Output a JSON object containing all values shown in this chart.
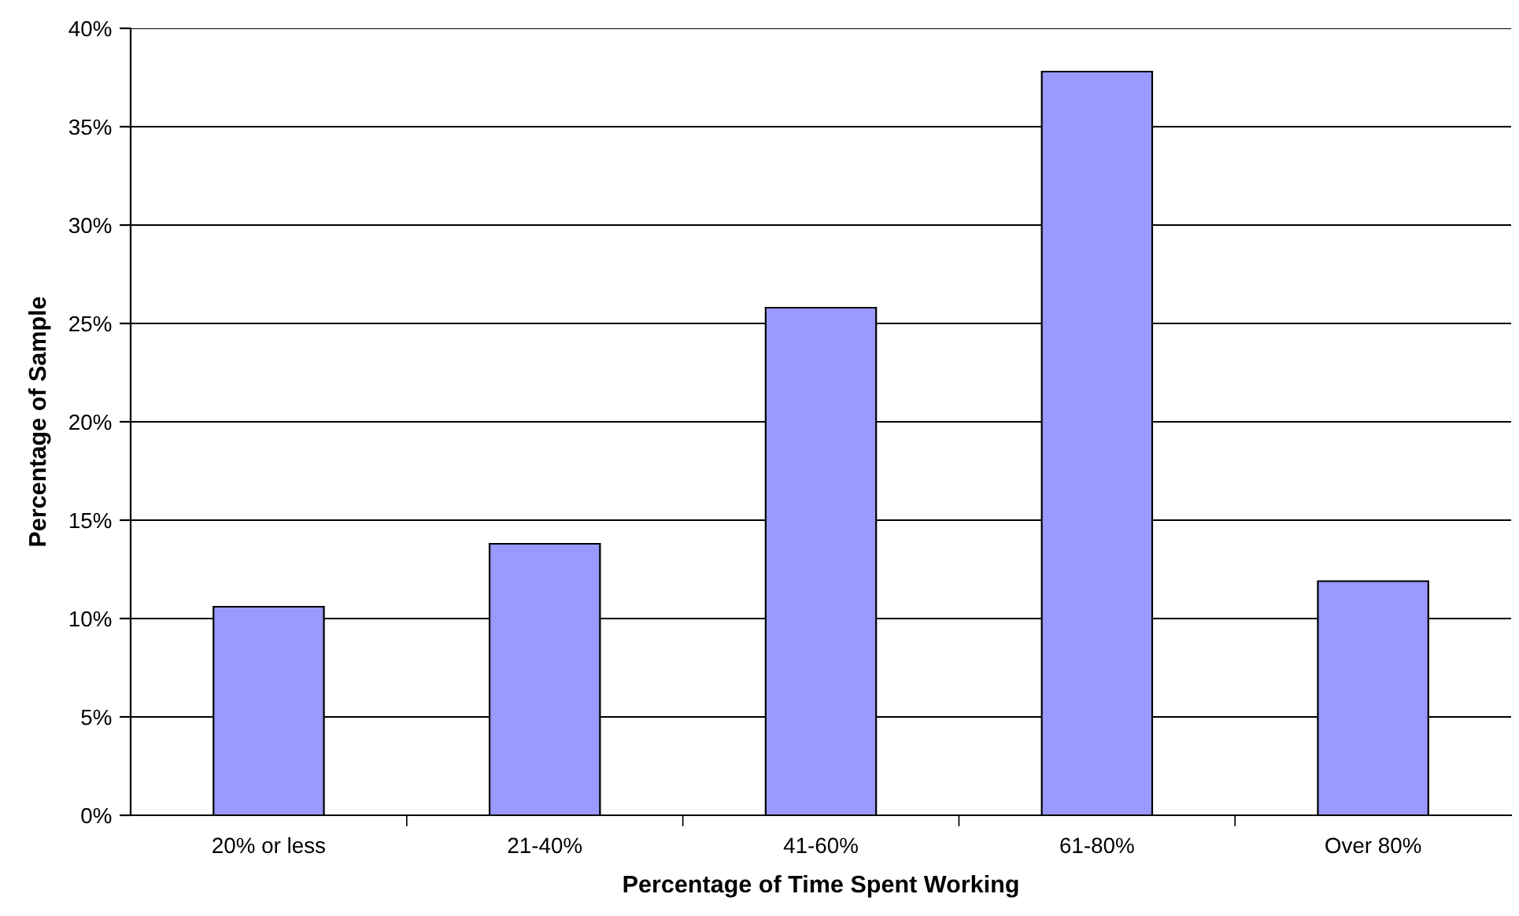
{
  "chart_data": {
    "type": "bar",
    "xlabel": "Percentage of Time Spent Working",
    "ylabel": "Percentage of Sample",
    "categories": [
      "20% or less",
      "21-40%",
      "41-60%",
      "61-80%",
      "Over 80%"
    ],
    "values": [
      10.6,
      13.8,
      25.8,
      37.8,
      11.9
    ],
    "color": "#9999ff",
    "ylim": [
      0,
      40
    ],
    "yticks": [
      {
        "value": 0,
        "label": "0%"
      },
      {
        "value": 5,
        "label": "5%"
      },
      {
        "value": 10,
        "label": "10%"
      },
      {
        "value": 15,
        "label": "15%"
      },
      {
        "value": 20,
        "label": "20%"
      },
      {
        "value": 25,
        "label": "25%"
      },
      {
        "value": 30,
        "label": "30%"
      },
      {
        "value": 35,
        "label": "35%"
      },
      {
        "value": 40,
        "label": "40%"
      }
    ],
    "grid": "y"
  }
}
